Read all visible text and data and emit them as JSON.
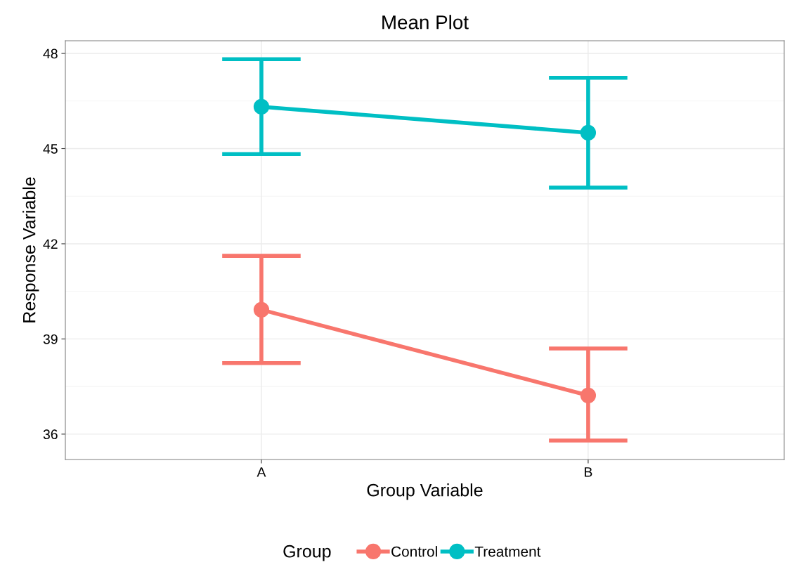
{
  "chart_data": {
    "type": "line",
    "title": "Mean Plot",
    "xlabel": "Group Variable",
    "ylabel": "Response Variable",
    "legend_title": "Group",
    "categories": [
      "A",
      "B"
    ],
    "series": [
      {
        "name": "Control",
        "color": "#f8766d",
        "values": [
          39.92,
          37.22
        ],
        "errors": [
          [
            38.24,
            41.62
          ],
          [
            35.8,
            38.7
          ]
        ]
      },
      {
        "name": "Treatment",
        "color": "#00bfc4",
        "values": [
          46.32,
          45.5
        ],
        "errors": [
          [
            44.83,
            47.82
          ],
          [
            43.77,
            47.23
          ]
        ]
      }
    ],
    "ylim": [
      35.2,
      48.4
    ],
    "yticks": [
      36,
      39,
      42,
      45,
      48
    ],
    "grid": true,
    "legend": "bottom",
    "marker": "circle",
    "line_style": "solid"
  }
}
